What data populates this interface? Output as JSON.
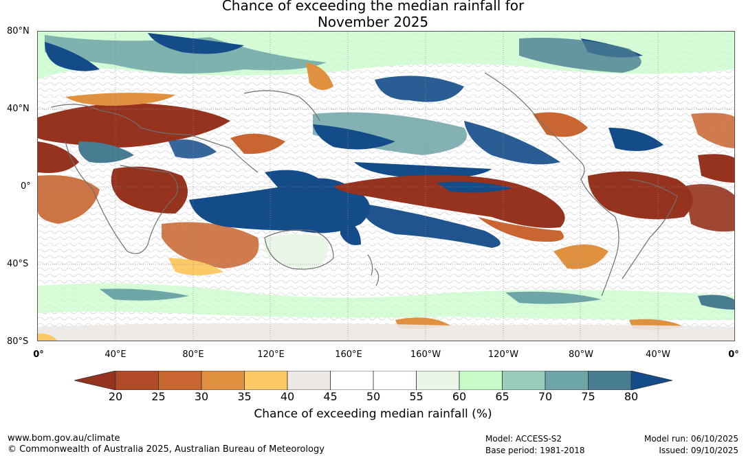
{
  "title": {
    "line1": "Chance of exceeding the median rainfall for",
    "line2": "November 2025"
  },
  "map": {
    "lat_labels": [
      "80°N",
      "40°N",
      "0°",
      "40°S",
      "80°S"
    ],
    "lon_labels": [
      "0°",
      "40°E",
      "80°E",
      "120°E",
      "160°E",
      "160°W",
      "120°W",
      "80°W",
      "40°W",
      "0°"
    ]
  },
  "colorbar": {
    "ticks": [
      "20",
      "25",
      "30",
      "35",
      "40",
      "45",
      "50",
      "55",
      "60",
      "65",
      "70",
      "75",
      "80"
    ],
    "colors": [
      "#96331e",
      "#b14b27",
      "#c86530",
      "#e0913f",
      "#fbc965",
      "#ece8e6",
      "#ffffff",
      "#ffffff",
      "#e9f5e6",
      "#c6fbc8",
      "#9acdbb",
      "#6ea5a7",
      "#487c91",
      "#144b89"
    ],
    "label": "Chance of exceeding median rainfall (%)"
  },
  "footer": {
    "url": "www.bom.gov.au/climate",
    "copyright": "© Commonwealth of Australia 2025, Australian Bureau of Meteorology",
    "model": "Model: ACCESS-S2",
    "base_period": "Base period: 1981-2018",
    "model_run": "Model run: 06/10/2025",
    "issued": "Issued: 09/10/2025"
  }
}
